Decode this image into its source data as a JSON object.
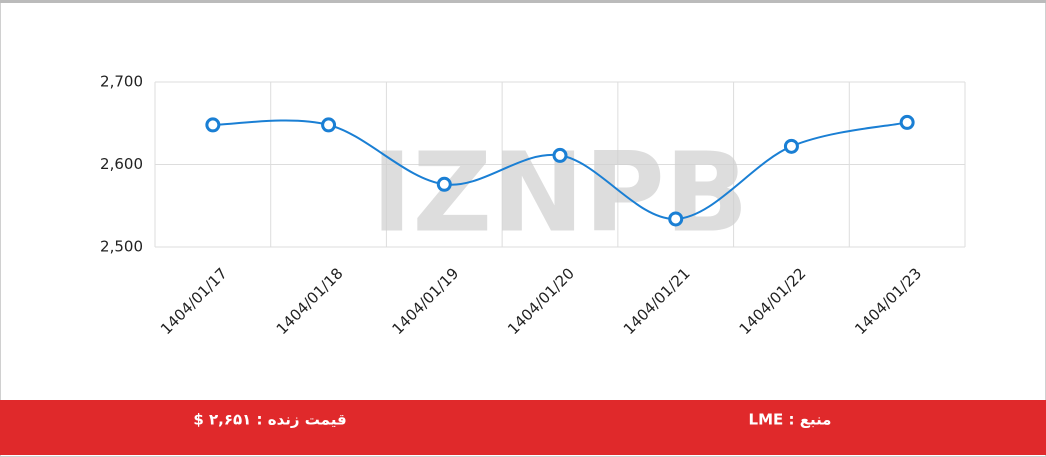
{
  "chart_data": {
    "type": "line",
    "watermark": "IZNPB",
    "categories": [
      "1404/01/17",
      "1404/01/18",
      "1404/01/19",
      "1404/01/20",
      "1404/01/21",
      "1404/01/22",
      "1404/01/23"
    ],
    "series": [
      {
        "color": "#1a7fd4",
        "values": [
          2648,
          2648,
          2576,
          2611,
          2534,
          2622,
          2651
        ]
      }
    ],
    "ylim": [
      2500,
      2700
    ],
    "yticks": [
      {
        "value": 2500,
        "label": "2,500"
      },
      {
        "value": 2600,
        "label": "2,600"
      },
      {
        "value": 2700,
        "label": "2,700"
      }
    ],
    "grid": true
  },
  "footer": {
    "source": "منبع : LME",
    "live_price": "قیمت زنده : ۲,۶۵۱ $"
  }
}
